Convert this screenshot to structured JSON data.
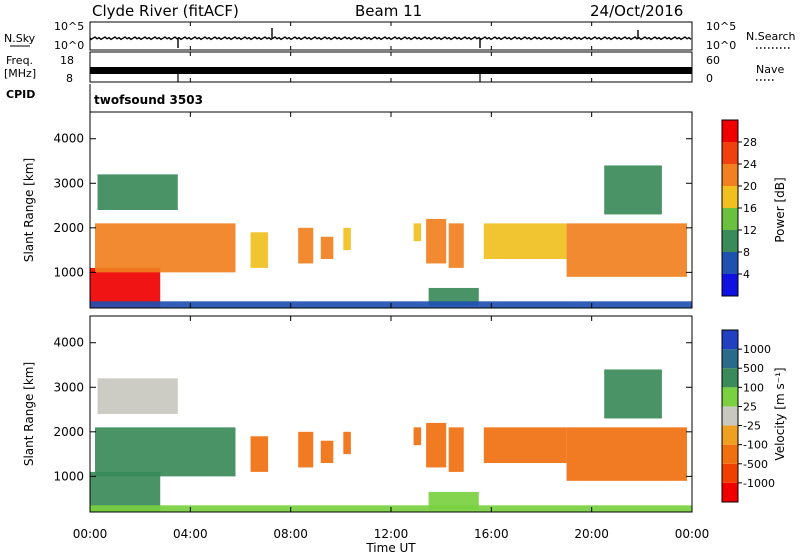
{
  "header": {
    "station": "Clyde River (fitACF)",
    "beam": "Beam 11",
    "date": "24/Oct/2016"
  },
  "noise_panel": {
    "left_label": "N.Sky",
    "left_ticks": [
      "10^5",
      "10^0"
    ],
    "right_ticks": [
      "10^5",
      "10^0"
    ],
    "right_label": "N.Search",
    "right_legend_style": "dotted"
  },
  "freq_panel": {
    "left_label_line1": "Freq.",
    "left_label_line2": "[MHz]",
    "left_ticks": [
      "18",
      "8"
    ],
    "right_ticks": [
      "60",
      "0"
    ],
    "right_label": "Nave",
    "right_legend_style": "dotted",
    "cpid_label": "CPID",
    "cpid_value": "twofsound 3503"
  },
  "time_axis": {
    "label": "Time UT",
    "ticks": [
      "00:00",
      "04:00",
      "08:00",
      "12:00",
      "16:00",
      "20:00",
      "00:00"
    ]
  },
  "colors": {
    "power_scale": [
      "#1010e0",
      "#2050b0",
      "#3a8a5a",
      "#6cc040",
      "#f0c020",
      "#f08020",
      "#f04010",
      "#f00000"
    ],
    "velocity_scale": [
      "#f00000",
      "#f04000",
      "#f07010",
      "#f0a020",
      "#c8c8c0",
      "#7ad040",
      "#3a8a5a",
      "#2a6a8a",
      "#2040c0"
    ]
  },
  "chart_data": [
    {
      "type": "heatmap",
      "title": "",
      "xlabel": "Time UT",
      "ylabel": "Slant Range [km]",
      "xlim": [
        0,
        24
      ],
      "ylim": [
        200,
        4600
      ],
      "yticks": [
        1000,
        2000,
        3000,
        4000
      ],
      "colorbar": {
        "label": "Power [dB]",
        "ticks": [
          4,
          8,
          12,
          16,
          20,
          24,
          28
        ],
        "range": [
          0,
          32
        ]
      },
      "regions": [
        {
          "t0": 0.0,
          "t1": 2.8,
          "r0": 200,
          "r1": 1100,
          "value": 30
        },
        {
          "t0": 0.2,
          "t1": 5.8,
          "r0": 1000,
          "r1": 2100,
          "value": 20
        },
        {
          "t0": 0.3,
          "t1": 3.5,
          "r0": 2400,
          "r1": 3200,
          "value": 10
        },
        {
          "t0": 6.4,
          "t1": 7.1,
          "r0": 1100,
          "r1": 1900,
          "value": 18
        },
        {
          "t0": 8.3,
          "t1": 8.9,
          "r0": 1200,
          "r1": 2000,
          "value": 20
        },
        {
          "t0": 9.2,
          "t1": 9.7,
          "r0": 1300,
          "r1": 1800,
          "value": 20
        },
        {
          "t0": 10.1,
          "t1": 10.4,
          "r0": 1500,
          "r1": 2000,
          "value": 18
        },
        {
          "t0": 12.9,
          "t1": 13.2,
          "r0": 1700,
          "r1": 2100,
          "value": 16
        },
        {
          "t0": 13.4,
          "t1": 14.2,
          "r0": 1200,
          "r1": 2200,
          "value": 22
        },
        {
          "t0": 14.3,
          "t1": 14.9,
          "r0": 1100,
          "r1": 2100,
          "value": 22
        },
        {
          "t0": 13.5,
          "t1": 15.5,
          "r0": 250,
          "r1": 650,
          "value": 8
        },
        {
          "t0": 15.7,
          "t1": 19.0,
          "r0": 1300,
          "r1": 2100,
          "value": 18
        },
        {
          "t0": 19.0,
          "t1": 23.8,
          "r0": 900,
          "r1": 2100,
          "value": 22
        },
        {
          "t0": 20.5,
          "t1": 22.8,
          "r0": 2300,
          "r1": 3400,
          "value": 10
        },
        {
          "t0": 0.0,
          "t1": 24.0,
          "r0": 200,
          "r1": 350,
          "value": 6
        }
      ]
    },
    {
      "type": "heatmap",
      "title": "",
      "xlabel": "Time UT",
      "ylabel": "Slant Range [km]",
      "xlim": [
        0,
        24
      ],
      "ylim": [
        200,
        4600
      ],
      "yticks": [
        1000,
        2000,
        3000,
        4000
      ],
      "colorbar": {
        "label": "Velocity [m s^-1]",
        "ticks": [
          -1000,
          -500,
          -100,
          -25,
          25,
          100,
          500,
          1000
        ]
      },
      "regions": [
        {
          "t0": 0.0,
          "t1": 2.8,
          "r0": 200,
          "r1": 1100,
          "value": 150
        },
        {
          "t0": 0.2,
          "t1": 5.8,
          "r0": 1000,
          "r1": 2100,
          "value": 120
        },
        {
          "t0": 0.3,
          "t1": 3.5,
          "r0": 2400,
          "r1": 3200,
          "value": 0
        },
        {
          "t0": 6.4,
          "t1": 7.1,
          "r0": 1100,
          "r1": 1900,
          "value": -150
        },
        {
          "t0": 8.3,
          "t1": 8.9,
          "r0": 1200,
          "r1": 2000,
          "value": -150
        },
        {
          "t0": 9.2,
          "t1": 9.7,
          "r0": 1300,
          "r1": 1800,
          "value": -200
        },
        {
          "t0": 10.1,
          "t1": 10.4,
          "r0": 1500,
          "r1": 2000,
          "value": -150
        },
        {
          "t0": 12.9,
          "t1": 13.2,
          "r0": 1700,
          "r1": 2100,
          "value": -150
        },
        {
          "t0": 13.4,
          "t1": 14.2,
          "r0": 1200,
          "r1": 2200,
          "value": -400
        },
        {
          "t0": 14.3,
          "t1": 14.9,
          "r0": 1100,
          "r1": 2100,
          "value": -400
        },
        {
          "t0": 13.5,
          "t1": 15.5,
          "r0": 250,
          "r1": 650,
          "value": 60
        },
        {
          "t0": 15.7,
          "t1": 19.0,
          "r0": 1300,
          "r1": 2100,
          "value": -200
        },
        {
          "t0": 19.0,
          "t1": 23.8,
          "r0": 900,
          "r1": 2100,
          "value": -200
        },
        {
          "t0": 20.5,
          "t1": 22.8,
          "r0": 2300,
          "r1": 3400,
          "value": 300
        },
        {
          "t0": 0.0,
          "t1": 24.0,
          "r0": 200,
          "r1": 350,
          "value": 50
        }
      ]
    }
  ]
}
